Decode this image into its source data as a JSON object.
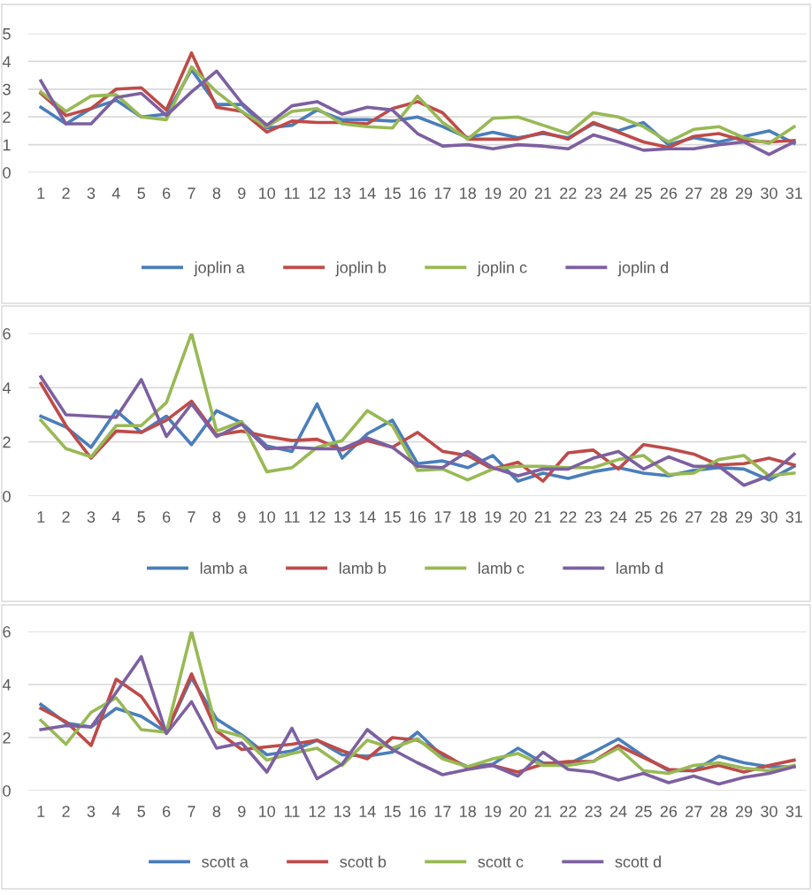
{
  "chart_data": [
    {
      "type": "line",
      "categories": [
        "1",
        "2",
        "3",
        "4",
        "5",
        "6",
        "7",
        "8",
        "9",
        "10",
        "11",
        "12",
        "13",
        "14",
        "15",
        "16",
        "17",
        "18",
        "19",
        "20",
        "21",
        "22",
        "23",
        "24",
        "25",
        "26",
        "27",
        "28",
        "29",
        "30",
        "31"
      ],
      "ylim": [
        0,
        5
      ],
      "yticks": [
        0,
        1,
        2,
        3,
        4,
        5
      ],
      "grid": "y",
      "legend": "bottom",
      "marker": "none",
      "line_style": "solid",
      "series": [
        {
          "name": "joplin a",
          "color": "#4a7ebb",
          "values": [
            2.35,
            1.75,
            2.3,
            2.6,
            2.0,
            2.1,
            3.7,
            2.45,
            2.45,
            1.6,
            1.7,
            2.25,
            1.9,
            1.9,
            1.85,
            2.0,
            1.65,
            1.25,
            1.45,
            1.25,
            1.4,
            1.25,
            1.75,
            1.5,
            1.8,
            1.0,
            1.25,
            1.1,
            1.3,
            1.5,
            1.05
          ]
        },
        {
          "name": "joplin b",
          "color": "#be4b48",
          "values": [
            2.85,
            2.05,
            2.3,
            3.0,
            3.05,
            2.25,
            4.3,
            2.35,
            2.2,
            1.45,
            1.85,
            1.8,
            1.8,
            1.75,
            2.3,
            2.55,
            2.15,
            1.2,
            1.2,
            1.2,
            1.45,
            1.2,
            1.8,
            1.45,
            1.1,
            0.9,
            1.3,
            1.4,
            1.15,
            1.1,
            1.15
          ]
        },
        {
          "name": "joplin c",
          "color": "#98b954",
          "values": [
            2.9,
            2.2,
            2.75,
            2.8,
            2.0,
            1.9,
            3.8,
            2.9,
            2.2,
            1.65,
            2.2,
            2.3,
            1.75,
            1.65,
            1.6,
            2.75,
            1.8,
            1.2,
            1.95,
            2.0,
            1.7,
            1.4,
            2.15,
            2.0,
            1.65,
            1.1,
            1.55,
            1.65,
            1.25,
            1.05,
            1.65
          ]
        },
        {
          "name": "joplin d",
          "color": "#7d60a0",
          "values": [
            3.3,
            1.75,
            1.75,
            2.7,
            2.85,
            2.05,
            2.9,
            3.65,
            2.5,
            1.7,
            2.4,
            2.55,
            2.1,
            2.35,
            2.25,
            1.4,
            0.95,
            1.0,
            0.85,
            1.0,
            0.95,
            0.85,
            1.35,
            1.1,
            0.8,
            0.85,
            0.85,
            1.0,
            1.1,
            0.65,
            1.1
          ]
        }
      ]
    },
    {
      "type": "line",
      "categories": [
        "1",
        "2",
        "3",
        "4",
        "5",
        "6",
        "7",
        "8",
        "9",
        "10",
        "11",
        "12",
        "13",
        "14",
        "15",
        "16",
        "17",
        "18",
        "19",
        "20",
        "21",
        "22",
        "23",
        "24",
        "25",
        "26",
        "27",
        "28",
        "29",
        "30",
        "31"
      ],
      "ylim": [
        0,
        6
      ],
      "yticks": [
        0,
        2,
        4,
        6
      ],
      "grid": "y",
      "legend": "bottom",
      "marker": "none",
      "line_style": "solid",
      "series": [
        {
          "name": "lamb a",
          "color": "#4a7ebb",
          "values": [
            2.95,
            2.55,
            1.8,
            3.15,
            2.35,
            2.95,
            1.9,
            3.15,
            2.7,
            1.85,
            1.65,
            3.4,
            1.4,
            2.3,
            2.8,
            1.2,
            1.3,
            1.05,
            1.5,
            0.55,
            0.85,
            0.65,
            0.9,
            1.05,
            0.85,
            0.75,
            0.95,
            1.05,
            1.0,
            0.6,
            1.1
          ]
        },
        {
          "name": "lamb b",
          "color": "#be4b48",
          "values": [
            4.15,
            2.6,
            1.4,
            2.4,
            2.35,
            2.8,
            3.5,
            2.25,
            2.4,
            2.2,
            2.05,
            2.1,
            1.7,
            2.05,
            1.8,
            2.35,
            1.65,
            1.5,
            1.0,
            1.25,
            0.55,
            1.6,
            1.7,
            1.0,
            1.9,
            1.75,
            1.55,
            1.15,
            1.2,
            1.4,
            1.15
          ]
        },
        {
          "name": "lamb c",
          "color": "#98b954",
          "values": [
            2.8,
            1.75,
            1.45,
            2.6,
            2.6,
            3.45,
            6.0,
            2.4,
            2.75,
            0.9,
            1.05,
            1.8,
            2.05,
            3.15,
            2.6,
            0.95,
            1.0,
            0.6,
            1.0,
            1.1,
            1.1,
            1.05,
            1.05,
            1.35,
            1.5,
            0.8,
            0.85,
            1.35,
            1.5,
            0.75,
            0.85
          ]
        },
        {
          "name": "lamb d",
          "color": "#7d60a0",
          "values": [
            4.4,
            3.0,
            2.95,
            2.9,
            4.3,
            2.2,
            3.4,
            2.2,
            2.65,
            1.75,
            1.8,
            1.75,
            1.75,
            2.15,
            1.8,
            1.1,
            1.05,
            1.65,
            1.05,
            0.75,
            1.0,
            1.0,
            1.4,
            1.65,
            1.0,
            1.45,
            1.1,
            1.1,
            0.4,
            0.75,
            1.55
          ]
        }
      ]
    },
    {
      "type": "line",
      "categories": [
        "1",
        "2",
        "3",
        "4",
        "5",
        "6",
        "7",
        "8",
        "9",
        "10",
        "11",
        "12",
        "13",
        "14",
        "15",
        "16",
        "17",
        "18",
        "19",
        "20",
        "21",
        "22",
        "23",
        "24",
        "25",
        "26",
        "27",
        "28",
        "29",
        "30",
        "31"
      ],
      "ylim": [
        0,
        6
      ],
      "yticks": [
        0,
        2,
        4,
        6
      ],
      "grid": "y",
      "legend": "bottom",
      "marker": "none",
      "line_style": "solid",
      "series": [
        {
          "name": "scott a",
          "color": "#4a7ebb",
          "values": [
            3.25,
            2.55,
            2.4,
            3.1,
            2.8,
            2.2,
            4.25,
            2.7,
            2.1,
            1.35,
            1.5,
            1.9,
            1.35,
            1.3,
            1.45,
            2.2,
            1.3,
            0.9,
            1.0,
            1.6,
            1.05,
            1.0,
            1.45,
            1.95,
            1.3,
            0.75,
            0.75,
            1.3,
            1.05,
            0.9,
            0.9
          ]
        },
        {
          "name": "scott b",
          "color": "#be4b48",
          "values": [
            3.1,
            2.6,
            1.7,
            4.2,
            3.55,
            2.2,
            4.4,
            2.25,
            1.55,
            1.65,
            1.75,
            1.9,
            1.5,
            1.2,
            2.0,
            1.9,
            1.4,
            0.85,
            0.95,
            0.7,
            1.0,
            1.1,
            1.1,
            1.7,
            1.25,
            0.8,
            0.75,
            0.95,
            0.7,
            0.95,
            1.15
          ]
        },
        {
          "name": "scott c",
          "color": "#98b954",
          "values": [
            2.65,
            1.75,
            2.95,
            3.5,
            2.3,
            2.2,
            6.0,
            2.3,
            2.05,
            1.15,
            1.4,
            1.6,
            0.95,
            1.9,
            1.6,
            1.95,
            1.2,
            0.9,
            1.2,
            1.4,
            0.95,
            0.95,
            1.1,
            1.6,
            0.75,
            0.65,
            0.95,
            1.05,
            0.85,
            0.75,
            0.95
          ]
        },
        {
          "name": "scott d",
          "color": "#7d60a0",
          "values": [
            2.3,
            2.45,
            2.4,
            3.7,
            5.05,
            2.15,
            3.35,
            1.6,
            1.8,
            0.7,
            2.35,
            0.45,
            1.0,
            2.3,
            1.55,
            1.05,
            0.6,
            0.8,
            0.95,
            0.55,
            1.45,
            0.8,
            0.7,
            0.4,
            0.65,
            0.3,
            0.55,
            0.25,
            0.5,
            0.65,
            0.9
          ]
        }
      ]
    }
  ]
}
